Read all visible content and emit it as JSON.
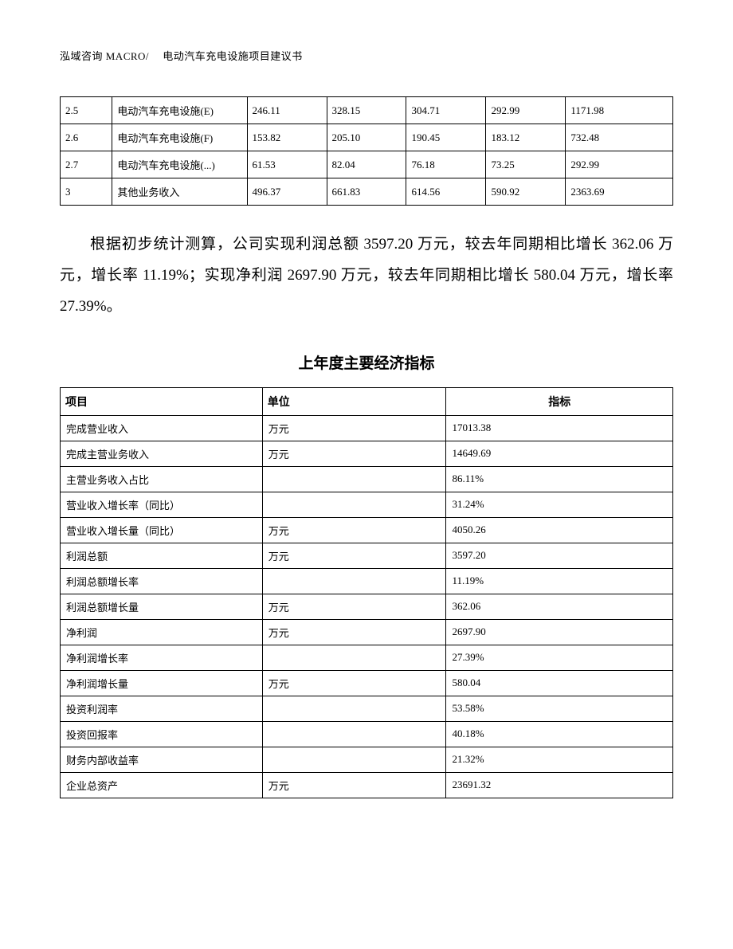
{
  "header": "泓域咨询 MACRO/　 电动汽车充电设施项目建议书",
  "table1": {
    "columns": [
      "",
      "",
      "",
      "",
      "",
      "",
      ""
    ],
    "rows": [
      [
        "2.5",
        "电动汽车充电设施(E)",
        "246.11",
        "328.15",
        "304.71",
        "292.99",
        "1171.98"
      ],
      [
        "2.6",
        "电动汽车充电设施(F)",
        "153.82",
        "205.10",
        "190.45",
        "183.12",
        "732.48"
      ],
      [
        "2.7",
        "电动汽车充电设施(...)",
        "61.53",
        "82.04",
        "76.18",
        "73.25",
        "292.99"
      ],
      [
        "3",
        "其他业务收入",
        "496.37",
        "661.83",
        "614.56",
        "590.92",
        "2363.69"
      ]
    ],
    "col_widths": [
      "8.5%",
      "22%",
      "13%",
      "13%",
      "13%",
      "13%",
      "17.5%"
    ]
  },
  "paragraph": "根据初步统计测算，公司实现利润总额 3597.20 万元，较去年同期相比增长 362.06 万元，增长率 11.19%；实现净利润 2697.90 万元，较去年同期相比增长 580.04 万元，增长率 27.39%。",
  "section_title": "上年度主要经济指标",
  "table2": {
    "headers": [
      "项目",
      "单位",
      "指标"
    ],
    "rows": [
      [
        "完成营业收入",
        "万元",
        "17013.38"
      ],
      [
        "完成主营业务收入",
        "万元",
        "14649.69"
      ],
      [
        "主营业务收入占比",
        "",
        "86.11%"
      ],
      [
        "营业收入增长率（同比）",
        "",
        "31.24%"
      ],
      [
        "营业收入增长量（同比）",
        "万元",
        "4050.26"
      ],
      [
        "利润总额",
        "万元",
        "3597.20"
      ],
      [
        "利润总额增长率",
        "",
        "11.19%"
      ],
      [
        "利润总额增长量",
        "万元",
        "362.06"
      ],
      [
        "净利润",
        "万元",
        "2697.90"
      ],
      [
        "净利润增长率",
        "",
        "27.39%"
      ],
      [
        "净利润增长量",
        "万元",
        "580.04"
      ],
      [
        "投资利润率",
        "",
        "53.58%"
      ],
      [
        "投资回报率",
        "",
        "40.18%"
      ],
      [
        "财务内部收益率",
        "",
        "21.32%"
      ],
      [
        "企业总资产",
        "万元",
        "23691.32"
      ]
    ],
    "col_widths": [
      "33%",
      "30%",
      "37%"
    ]
  },
  "colors": {
    "text": "#000000",
    "background": "#ffffff",
    "border": "#000000"
  }
}
